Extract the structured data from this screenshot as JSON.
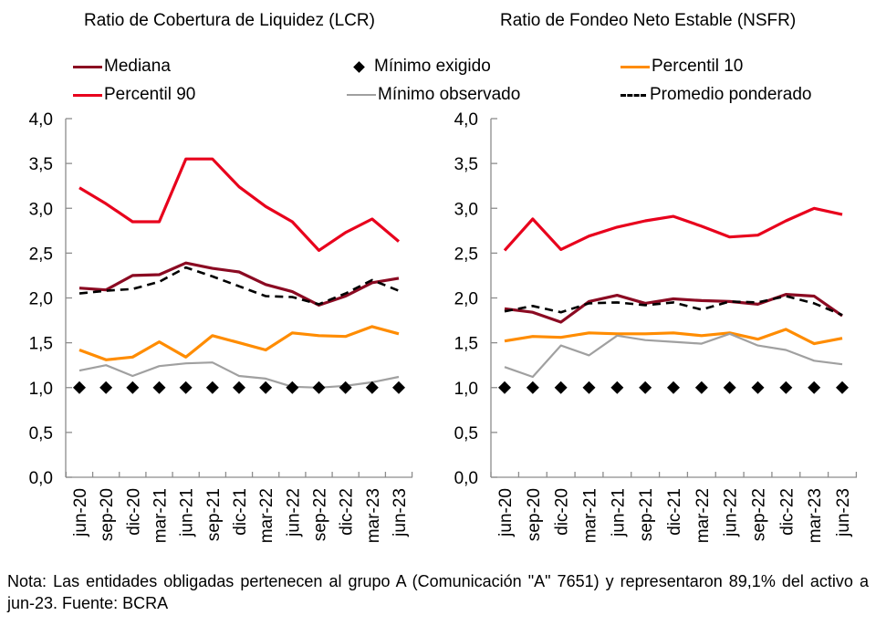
{
  "legend": [
    {
      "label": "Mediana",
      "color": "#8B0A22",
      "style": "line"
    },
    {
      "label": "Mínimo exigido",
      "color": "#000000",
      "style": "diamond"
    },
    {
      "label": "Percentil 10",
      "color": "#FF8C00",
      "style": "line"
    },
    {
      "label": "Percentil 90",
      "color": "#E8001C",
      "style": "line"
    },
    {
      "label": "Mínimo observado",
      "color": "#A0A0A0",
      "style": "thin-line"
    },
    {
      "label": "Promedio ponderado",
      "color": "#000000",
      "style": "dashed"
    }
  ],
  "note": "Nota: Las entidades obligadas pertenecen al grupo A (Comunicación \"A\" 7651) y representaron 89,1% del activo a jun-23. Fuente: BCRA",
  "chart_data": [
    {
      "type": "line",
      "title": "Ratio de Cobertura de Liquidez (LCR)",
      "xlabel": "",
      "ylabel": "",
      "ylim": [
        0,
        4
      ],
      "yticks": [
        "0,0",
        "0,5",
        "1,0",
        "1,5",
        "2,0",
        "2,5",
        "3,0",
        "3,5",
        "4,0"
      ],
      "grid": false,
      "legend_position": "top",
      "categories": [
        "jun-20",
        "sep-20",
        "dic-20",
        "mar-21",
        "jun-21",
        "sep-21",
        "dic-21",
        "mar-22",
        "jun-22",
        "sep-22",
        "dic-22",
        "mar-23",
        "jun-23"
      ],
      "series": [
        {
          "name": "Percentil 90",
          "color": "#E8001C",
          "values": [
            3.23,
            3.05,
            2.85,
            2.85,
            3.55,
            3.55,
            3.24,
            3.02,
            2.85,
            2.53,
            2.73,
            2.88,
            2.63
          ]
        },
        {
          "name": "Mediana",
          "color": "#8B0A22",
          "values": [
            2.11,
            2.09,
            2.25,
            2.26,
            2.39,
            2.33,
            2.29,
            2.15,
            2.07,
            1.92,
            2.02,
            2.17,
            2.22
          ]
        },
        {
          "name": "Promedio ponderado",
          "color": "#000000",
          "dashed": true,
          "values": [
            2.05,
            2.08,
            2.1,
            2.18,
            2.34,
            2.24,
            2.13,
            2.02,
            2.01,
            1.93,
            2.05,
            2.2,
            2.08
          ]
        },
        {
          "name": "Percentil 10",
          "color": "#FF8C00",
          "values": [
            1.42,
            1.31,
            1.34,
            1.51,
            1.34,
            1.58,
            1.5,
            1.42,
            1.61,
            1.58,
            1.57,
            1.68,
            1.6
          ]
        },
        {
          "name": "Mínimo observado",
          "color": "#A0A0A0",
          "thin": true,
          "values": [
            1.19,
            1.25,
            1.13,
            1.24,
            1.27,
            1.28,
            1.13,
            1.1,
            1.01,
            1.0,
            1.02,
            1.06,
            1.12
          ]
        },
        {
          "name": "Mínimo exigido",
          "color": "#000000",
          "marker": "diamond",
          "values": [
            1,
            1,
            1,
            1,
            1,
            1,
            1,
            1,
            1,
            1,
            1,
            1,
            1
          ]
        }
      ]
    },
    {
      "type": "line",
      "title": "Ratio de Fondeo Neto Estable (NSFR)",
      "xlabel": "",
      "ylabel": "",
      "ylim": [
        0,
        4
      ],
      "yticks": [
        "0,0",
        "0,5",
        "1,0",
        "1,5",
        "2,0",
        "2,5",
        "3,0",
        "3,5",
        "4,0"
      ],
      "grid": false,
      "legend_position": "top",
      "categories": [
        "jun-20",
        "sep-20",
        "dic-20",
        "mar-21",
        "jun-21",
        "sep-21",
        "dic-21",
        "mar-22",
        "jun-22",
        "sep-22",
        "dic-22",
        "mar-23",
        "jun-23"
      ],
      "series": [
        {
          "name": "Percentil 90",
          "color": "#E8001C",
          "values": [
            2.53,
            2.88,
            2.54,
            2.69,
            2.79,
            2.86,
            2.91,
            2.8,
            2.68,
            2.7,
            2.86,
            3.0,
            2.93
          ]
        },
        {
          "name": "Mediana",
          "color": "#8B0A22",
          "values": [
            1.88,
            1.84,
            1.73,
            1.96,
            2.03,
            1.94,
            1.99,
            1.97,
            1.96,
            1.93,
            2.04,
            2.02,
            1.8
          ]
        },
        {
          "name": "Promedio ponderado",
          "color": "#000000",
          "dashed": true,
          "values": [
            1.85,
            1.91,
            1.84,
            1.94,
            1.95,
            1.92,
            1.95,
            1.87,
            1.96,
            1.95,
            2.02,
            1.94,
            1.81
          ]
        },
        {
          "name": "Percentil 10",
          "color": "#FF8C00",
          "values": [
            1.52,
            1.57,
            1.56,
            1.61,
            1.6,
            1.6,
            1.61,
            1.58,
            1.61,
            1.54,
            1.65,
            1.49,
            1.55
          ]
        },
        {
          "name": "Mínimo observado",
          "color": "#A0A0A0",
          "thin": true,
          "values": [
            1.23,
            1.12,
            1.47,
            1.36,
            1.58,
            1.53,
            1.51,
            1.49,
            1.6,
            1.47,
            1.42,
            1.3,
            1.26
          ]
        },
        {
          "name": "Mínimo exigido",
          "color": "#000000",
          "marker": "diamond",
          "values": [
            1,
            1,
            1,
            1,
            1,
            1,
            1,
            1,
            1,
            1,
            1,
            1,
            1
          ]
        }
      ]
    }
  ]
}
